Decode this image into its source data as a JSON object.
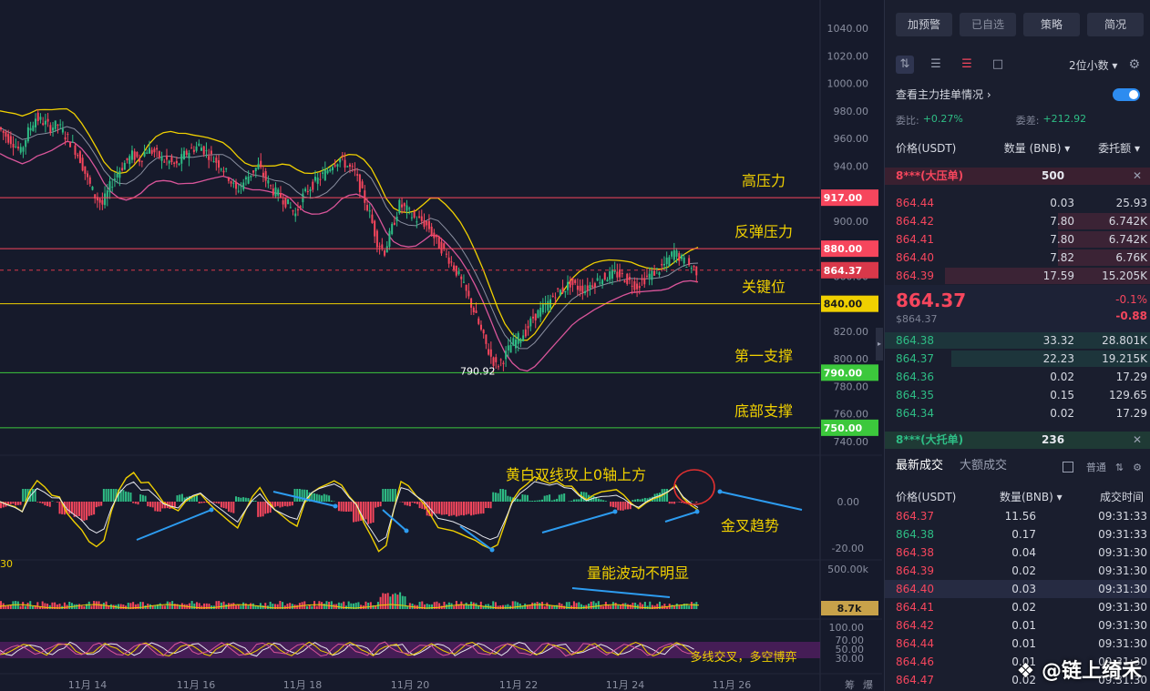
{
  "chart_data": {
    "type": "candlestick",
    "symbol_quote": "USDT",
    "x_ticks": [
      "11月 14",
      "11月 16",
      "11月 18",
      "11月 20",
      "11月 22",
      "11月 24",
      "11月 26"
    ],
    "price_ticks": [
      "1040.00",
      "1020.00",
      "1000.00",
      "980.00",
      "960.00",
      "940.00",
      "920.00",
      "900.00",
      "880.00",
      "860.00",
      "840.00",
      "820.00",
      "800.00",
      "780.00",
      "760.00",
      "740.00"
    ],
    "price_ylim": [
      735,
      1045
    ],
    "levels": [
      {
        "price": 917,
        "label": "917.00",
        "annotation": "高压力",
        "color": "#f6465d"
      },
      {
        "price": 880,
        "label": "880.00",
        "annotation": "反弹压力",
        "color": "#f6465d"
      },
      {
        "price": 864.37,
        "label": "864.37",
        "annotation": "",
        "color": "#d9384a",
        "dashed": true
      },
      {
        "price": 840,
        "label": "840.00",
        "annotation": "关键位",
        "color": "#f0d000"
      },
      {
        "price": 790,
        "label": "790.00",
        "annotation": "第一支撑",
        "color": "#3cc83c"
      },
      {
        "price": 750,
        "label": "750.00",
        "annotation": "底部支撑",
        "color": "#3cc83c"
      }
    ],
    "low_marker": "790.92",
    "close_path": [
      968,
      962,
      957,
      950,
      965,
      975,
      972,
      968,
      970,
      962,
      955,
      945,
      930,
      918,
      912,
      925,
      935,
      942,
      948,
      945,
      952,
      950,
      945,
      943,
      940,
      948,
      952,
      955,
      950,
      945,
      940,
      932,
      922,
      928,
      935,
      940,
      930,
      922,
      918,
      912,
      905,
      918,
      925,
      930,
      935,
      942,
      945,
      940,
      935,
      920,
      905,
      885,
      878,
      895,
      912,
      908,
      902,
      900,
      895,
      885,
      878,
      870,
      860,
      848,
      835,
      820,
      805,
      795,
      800,
      810,
      815,
      820,
      830,
      835,
      840,
      848,
      850,
      855,
      852,
      850,
      855,
      858,
      860,
      862,
      860,
      856,
      853,
      858,
      862,
      865,
      870,
      878,
      872,
      868,
      864
    ],
    "macd": {
      "zero_label": "0.00",
      "ticks": [
        "0.00",
        "-20.00"
      ],
      "left_value": "30",
      "annotation": "黄白双线攻上0轴上方",
      "annotation2": "金叉趋势"
    },
    "volume": {
      "ticks": [
        "500.00k"
      ],
      "current": "8.7k",
      "annotation": "量能波动不明显"
    },
    "rsi": {
      "ticks": [
        "100.00",
        "70.00",
        "50.00",
        "30.00"
      ],
      "annotation": "多线交叉，多空博弈"
    },
    "bottom_right_glyphs": [
      "筹",
      "爆"
    ]
  },
  "panel": {
    "top_buttons": [
      "加预警",
      "已自选",
      "策略",
      "简况"
    ],
    "decimals": "2位小数",
    "orderbook_toggle_label": "查看主力挂单情况",
    "ratio_label": "委比:",
    "ratio_value": "+0.27%",
    "diff_label": "委差:",
    "diff_value": "+212.92",
    "headers": [
      "价格(USDT)",
      "数量 (BNB)",
      "委托额"
    ],
    "big_ask": {
      "label": "8***(大压单)",
      "qty": "500"
    },
    "asks": [
      {
        "price": "864.44",
        "qty": "0.03",
        "total": "25.93",
        "fill": 0.0
      },
      {
        "price": "864.42",
        "qty": "7.80",
        "total": "6.742K",
        "fill": 0.45
      },
      {
        "price": "864.41",
        "qty": "7.80",
        "total": "6.742K",
        "fill": 0.45
      },
      {
        "price": "864.40",
        "qty": "7.82",
        "total": "6.76K",
        "fill": 0.45
      },
      {
        "price": "864.39",
        "qty": "17.59",
        "total": "15.205K",
        "fill": 1.0
      }
    ],
    "last_price": "864.37",
    "last_price_usd": "$864.37",
    "change_pct": "-0.1%",
    "change_abs": "-0.88",
    "bids": [
      {
        "price": "864.38",
        "qty": "33.32",
        "total": "28.801K",
        "fill": 1.0
      },
      {
        "price": "864.37",
        "qty": "22.23",
        "total": "19.215K",
        "fill": 0.75
      },
      {
        "price": "864.36",
        "qty": "0.02",
        "total": "17.29",
        "fill": 0.0
      },
      {
        "price": "864.35",
        "qty": "0.15",
        "total": "129.65",
        "fill": 0.0
      },
      {
        "price": "864.34",
        "qty": "0.02",
        "total": "17.29",
        "fill": 0.0
      }
    ],
    "big_bid": {
      "label": "8***(大托单)",
      "qty": "236"
    },
    "trade_tabs": [
      "最新成交",
      "大额成交"
    ],
    "trade_opt": "普通",
    "trade_headers": [
      "价格(USDT)",
      "数量(BNB)",
      "成交时间"
    ],
    "trades": [
      {
        "price": "864.37",
        "qty": "11.56",
        "time": "09:31:33",
        "side": "sell"
      },
      {
        "price": "864.38",
        "qty": "0.17",
        "time": "09:31:33",
        "side": "buy"
      },
      {
        "price": "864.38",
        "qty": "0.04",
        "time": "09:31:30",
        "side": "sell"
      },
      {
        "price": "864.39",
        "qty": "0.02",
        "time": "09:31:30",
        "side": "sell"
      },
      {
        "price": "864.40",
        "qty": "0.03",
        "time": "09:31:30",
        "side": "sell"
      },
      {
        "price": "864.41",
        "qty": "0.02",
        "time": "09:31:30",
        "side": "sell"
      },
      {
        "price": "864.42",
        "qty": "0.01",
        "time": "09:31:30",
        "side": "sell"
      },
      {
        "price": "864.44",
        "qty": "0.01",
        "time": "09:31:30",
        "side": "sell"
      },
      {
        "price": "864.46",
        "qty": "0.01",
        "time": "09:31:30",
        "side": "sell"
      },
      {
        "price": "864.47",
        "qty": "0.02",
        "time": "09:31:30",
        "side": "sell"
      }
    ],
    "watermark": "链上绮禾"
  },
  "colors": {
    "up": "#2ebd85",
    "down": "#f6465d",
    "yellow": "#f0d000"
  }
}
